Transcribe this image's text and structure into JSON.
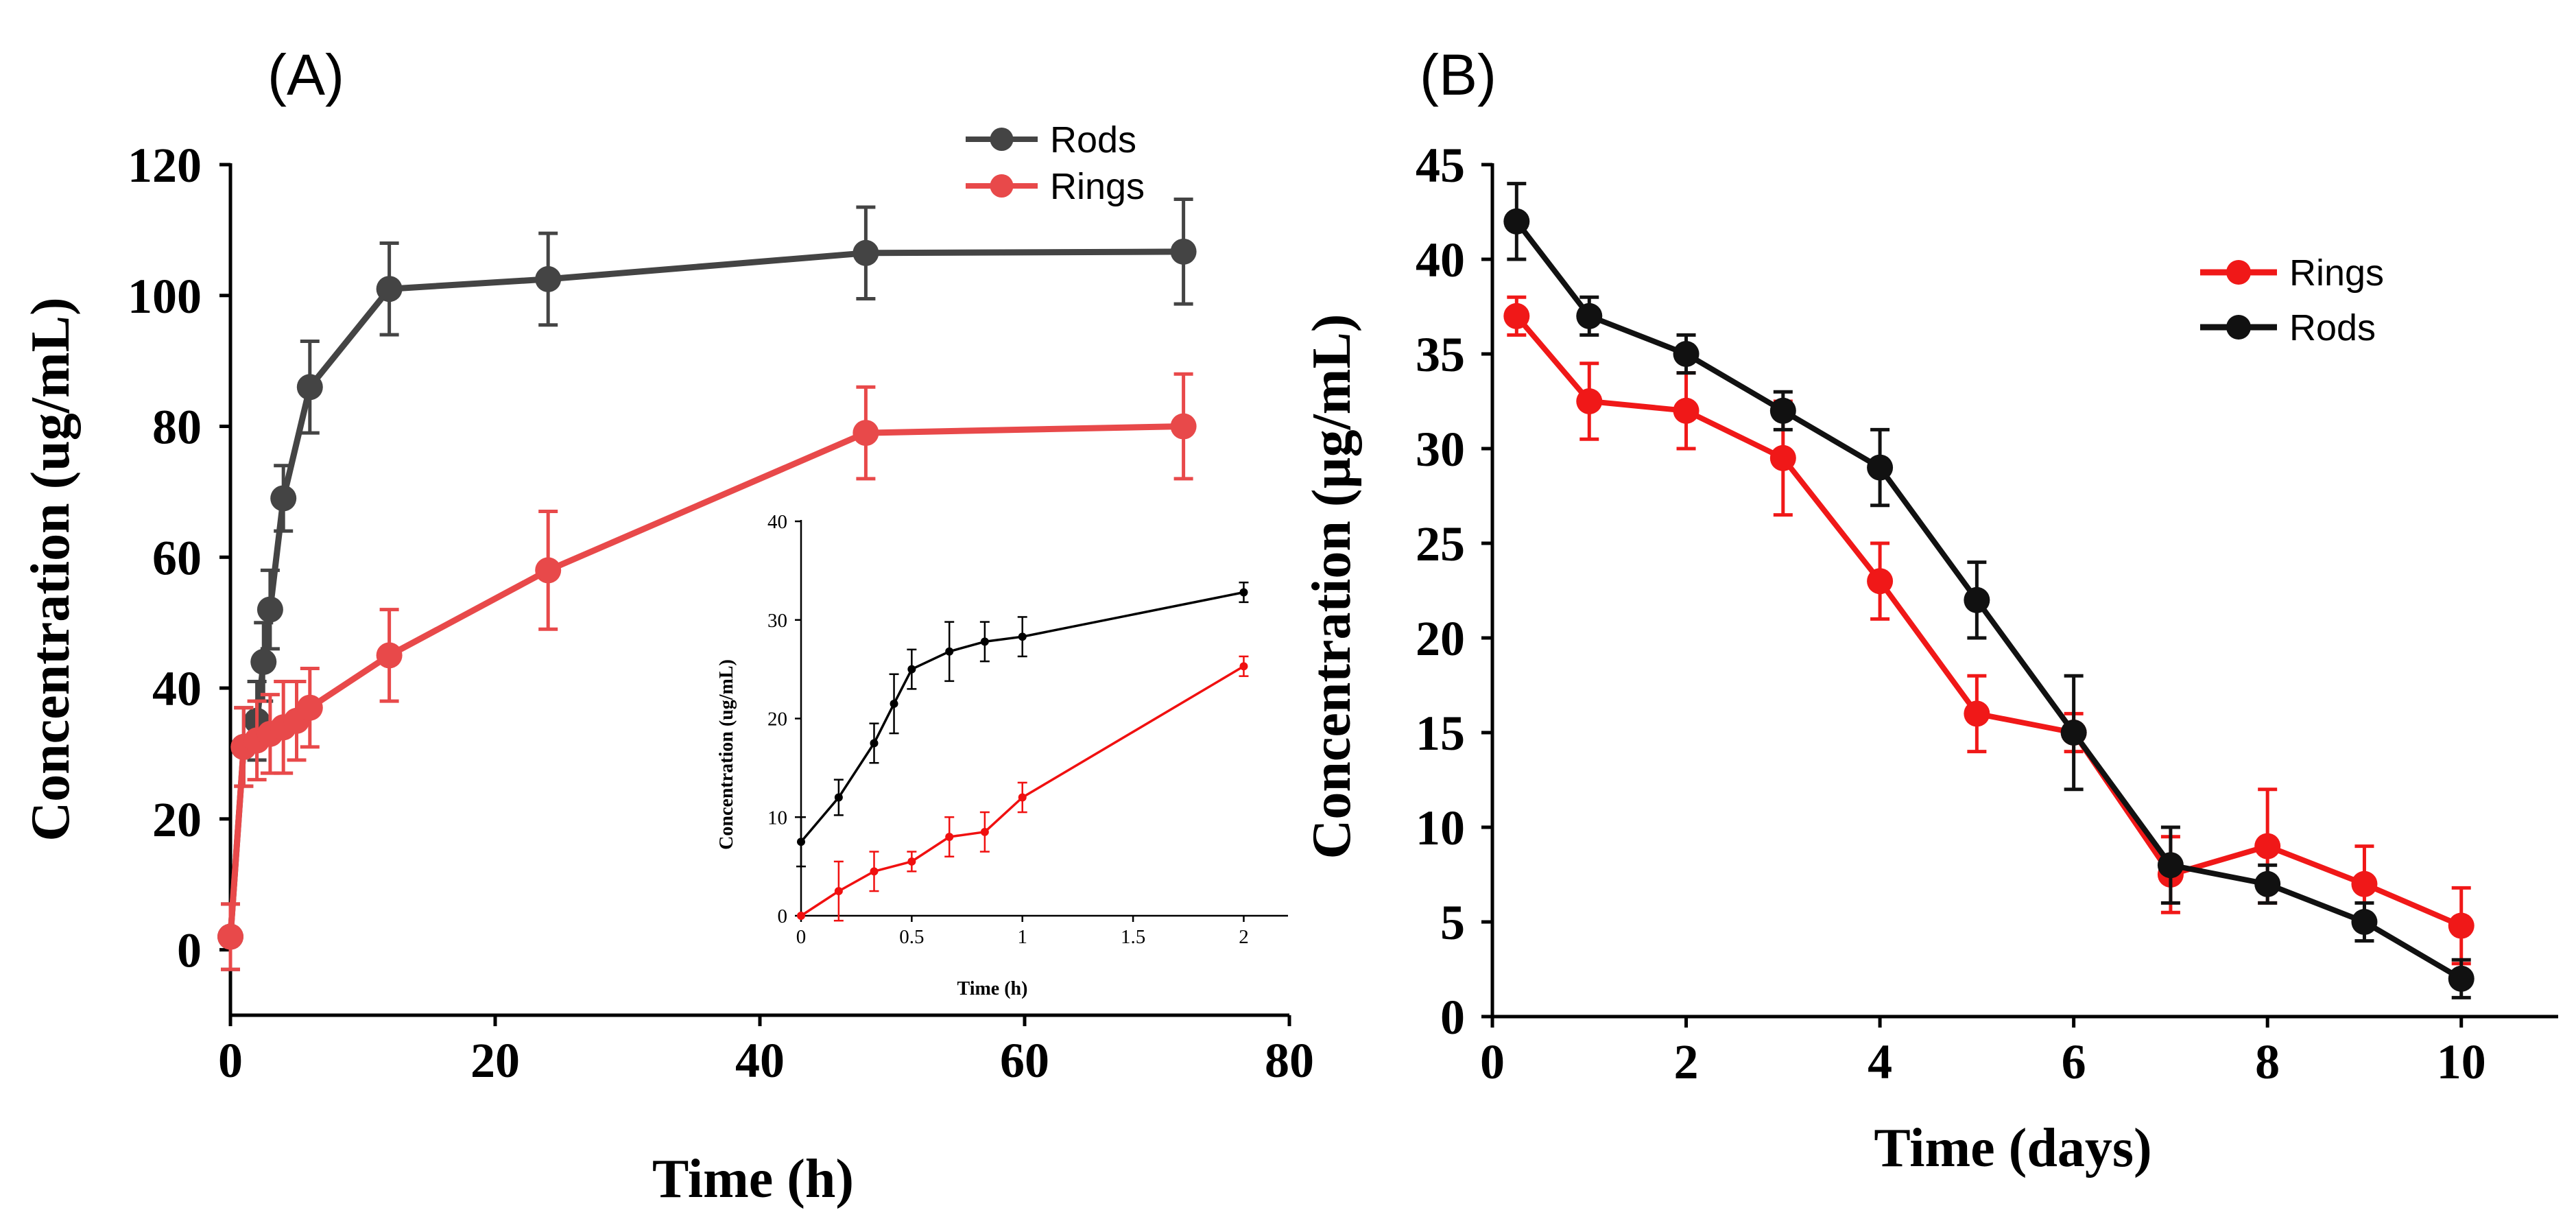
{
  "colors": {
    "rods": "#444444",
    "rings_a": "#e8494a",
    "rods_b": "#111111",
    "rings_b": "#f01818",
    "inset_rods": "#000000",
    "inset_rings": "#f01010"
  },
  "chart_data": [
    {
      "id": "A",
      "type": "line",
      "panel_label": "(A)",
      "xlabel": "Time (h)",
      "ylabel": "Concentration (ug/mL)",
      "xlim": [
        0,
        80
      ],
      "ylim": [
        -10,
        120
      ],
      "xticks": [
        "0",
        "20",
        "40",
        "60",
        "80"
      ],
      "yticks": [
        "0",
        "20",
        "40",
        "60",
        "80",
        "100",
        "120"
      ],
      "legend": [
        "Rods",
        "Rings"
      ],
      "legend_position": "top-right",
      "series": [
        {
          "name": "Rods",
          "x": [
            0,
            1,
            2,
            2.5,
            3,
            4,
            6,
            12,
            24,
            48,
            72
          ],
          "y": [
            2,
            31,
            35,
            44,
            52,
            69,
            86,
            101,
            102.5,
            106.5,
            106.7
          ],
          "err": [
            5,
            6,
            6,
            6,
            6,
            5,
            7,
            7,
            7,
            7,
            8
          ]
        },
        {
          "name": "Rings",
          "x": [
            0,
            1,
            2,
            3,
            4,
            5,
            6,
            12,
            24,
            48,
            72
          ],
          "y": [
            2,
            31,
            32,
            33,
            34,
            35,
            37,
            45,
            58,
            79,
            80
          ],
          "err": [
            5,
            6,
            6,
            6,
            7,
            6,
            6,
            7,
            9,
            7,
            8
          ]
        }
      ],
      "inset": {
        "type": "line",
        "xlabel": "Time (h)",
        "ylabel": "Concentration (ug/mL)",
        "xlim": [
          0,
          2.2
        ],
        "ylim": [
          0,
          40
        ],
        "xticks": [
          "0",
          "0.5",
          "1",
          "1.5",
          "2"
        ],
        "yticks": [
          "0",
          "10",
          "20",
          "30",
          "40"
        ],
        "series": [
          {
            "name": "Rods",
            "x": [
              0,
              0.17,
              0.33,
              0.42,
              0.5,
              0.67,
              0.83,
              1,
              2
            ],
            "y": [
              7.5,
              12,
              17.5,
              21.5,
              25,
              26.8,
              27.8,
              28.3,
              32.8
            ],
            "err": [
              2.5,
              1.8,
              2,
              3,
              2,
              3,
              2,
              2,
              1
            ]
          },
          {
            "name": "Rings",
            "x": [
              0,
              0.17,
              0.33,
              0.5,
              0.67,
              0.83,
              1,
              2
            ],
            "y": [
              0,
              2.5,
              4.5,
              5.5,
              8,
              8.5,
              12,
              25.3
            ],
            "err": [
              0,
              3,
              2,
              1,
              2,
              2,
              1.5,
              1
            ]
          }
        ]
      }
    },
    {
      "id": "B",
      "type": "line",
      "panel_label": "(B)",
      "xlabel": "Time (days)",
      "ylabel": "Concentration (µg/mL)",
      "xlim": [
        0,
        11
      ],
      "ylim": [
        0,
        45
      ],
      "xticks": [
        "0",
        "2",
        "4",
        "6",
        "8",
        "10"
      ],
      "yticks": [
        "0",
        "5",
        "10",
        "15",
        "20",
        "25",
        "30",
        "35",
        "40",
        "45"
      ],
      "legend": [
        "Rings",
        "Rods"
      ],
      "legend_position": "top-right",
      "series": [
        {
          "name": "Rings",
          "x": [
            0.25,
            1,
            2,
            3,
            4,
            5,
            6,
            7,
            8,
            9,
            10
          ],
          "y": [
            37,
            32.5,
            32,
            29.5,
            23,
            16,
            15,
            7.5,
            9,
            7,
            4.8
          ],
          "err": [
            1,
            2,
            2,
            3,
            2,
            2,
            1,
            2,
            3,
            2,
            2
          ]
        },
        {
          "name": "Rods",
          "x": [
            0.25,
            1,
            2,
            3,
            4,
            5,
            6,
            7,
            8,
            9,
            10
          ],
          "y": [
            42,
            37,
            35,
            32,
            29,
            22,
            15,
            8,
            7,
            5,
            2
          ],
          "err": [
            2,
            1,
            1,
            1,
            2,
            2,
            3,
            2,
            1,
            1,
            1
          ]
        }
      ]
    }
  ]
}
